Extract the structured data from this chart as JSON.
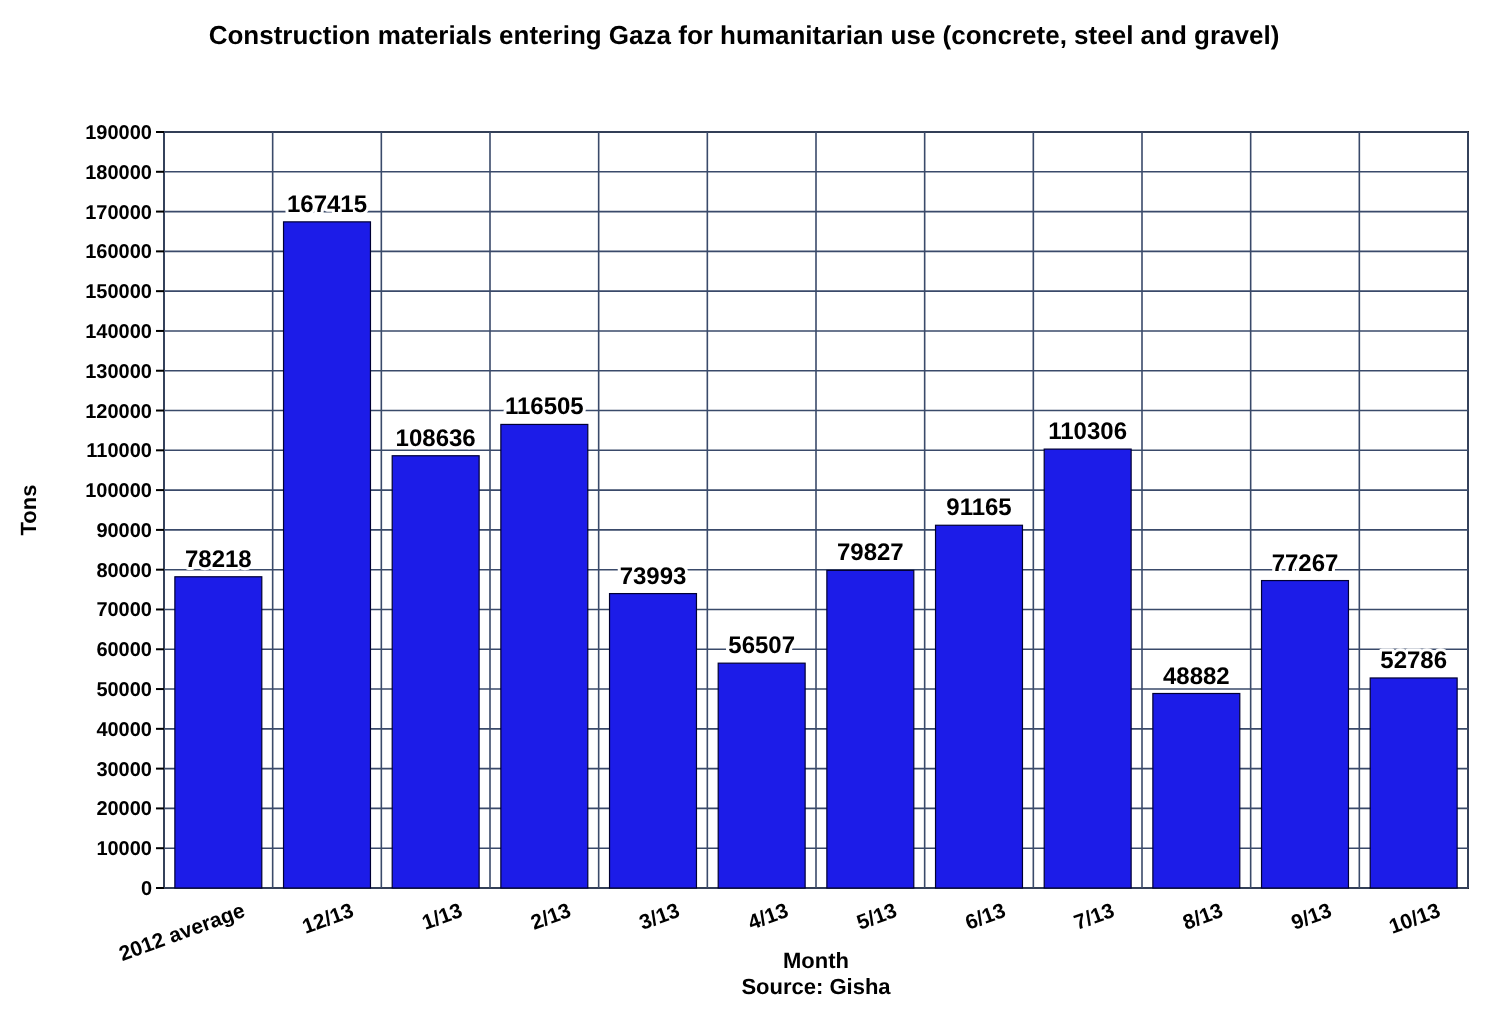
{
  "chart_data": {
    "type": "bar",
    "title": "Construction materials entering Gaza for humanitarian use (concrete, steel and gravel)",
    "xlabel": "Month",
    "ylabel": "Tons",
    "annotations": [
      "Source: Gisha"
    ],
    "categories": [
      "2012 average",
      "12/13",
      "1/13",
      "2/13",
      "3/13",
      "4/13",
      "5/13",
      "6/13",
      "7/13",
      "8/13",
      "9/13",
      "10/13"
    ],
    "values": [
      78218,
      167415,
      108636,
      116505,
      73993,
      56507,
      79827,
      91165,
      110306,
      48882,
      77267,
      52786
    ],
    "color": "#1c1ce8",
    "data_labels": true,
    "grid": true,
    "ylim": [
      0,
      190000
    ],
    "yticks": [
      0,
      10000,
      20000,
      30000,
      40000,
      50000,
      60000,
      70000,
      80000,
      90000,
      100000,
      110000,
      120000,
      130000,
      140000,
      150000,
      160000,
      170000,
      180000,
      190000
    ]
  }
}
